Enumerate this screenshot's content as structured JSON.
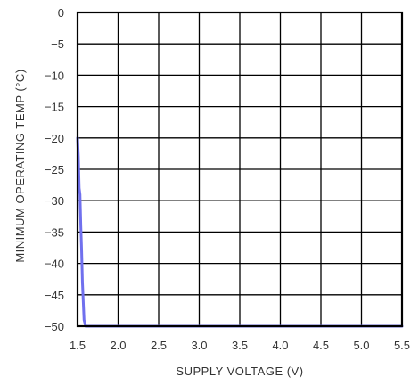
{
  "chart_data": {
    "type": "line",
    "title": "",
    "xlabel": "SUPPLY VOLTAGE (V)",
    "ylabel": "MINIMUM OPERATING TEMP (°C)",
    "xlim": [
      1.5,
      5.5
    ],
    "ylim": [
      -50,
      0
    ],
    "x_ticks": [
      1.5,
      2.0,
      2.5,
      3.0,
      3.5,
      4.0,
      4.5,
      5.0,
      5.5
    ],
    "x_tick_labels": [
      "1.5",
      "2.0",
      "2.5",
      "3.0",
      "3.5",
      "4.0",
      "4.5",
      "5.0",
      "5.5"
    ],
    "y_ticks": [
      0,
      -5,
      -10,
      -15,
      -20,
      -25,
      -30,
      -35,
      -40,
      -45,
      -50
    ],
    "y_tick_labels": [
      "0",
      "−5",
      "−10",
      "−15",
      "−20",
      "−25",
      "−30",
      "−35",
      "−40",
      "−45",
      "−50"
    ],
    "grid": true,
    "colors": {
      "series": "#7070ee",
      "grid": "#000000",
      "text": "#333333"
    },
    "series": [
      {
        "x": [
          1.5,
          1.51,
          1.52,
          1.53,
          1.54,
          1.55,
          1.56,
          1.57,
          1.58,
          1.6,
          1.65,
          2.0,
          3.0,
          4.0,
          5.0,
          5.5
        ],
        "y": [
          -20,
          -23,
          -28,
          -29,
          -34,
          -38,
          -43,
          -46,
          -49,
          -50,
          -50,
          -50,
          -50,
          -50,
          -50,
          -50
        ]
      }
    ]
  }
}
